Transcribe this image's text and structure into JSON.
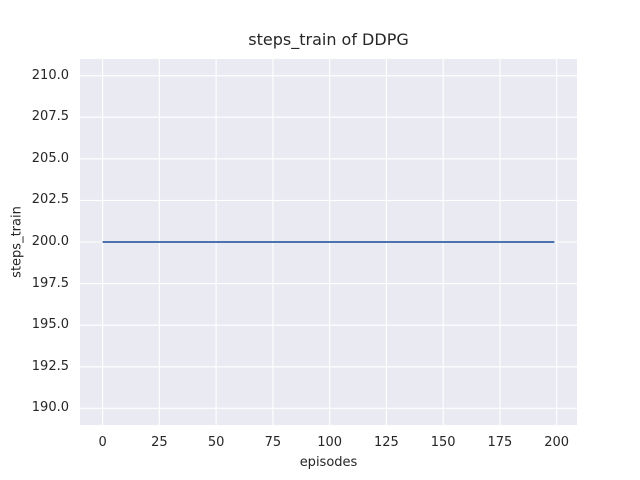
{
  "chart_data": {
    "type": "line",
    "title": "steps_train of DDPG",
    "xlabel": "episodes",
    "ylabel": "steps_train",
    "series": [
      {
        "color": "#4c72b0",
        "x": [
          0,
          199
        ],
        "y": [
          200,
          200
        ],
        "description": "constant line at steps_train = 200 for episodes 0 through 199"
      }
    ],
    "xlim": [
      -9.95,
      208.95
    ],
    "ylim": [
      189,
      211
    ],
    "xtick_values": [
      0,
      25,
      50,
      75,
      100,
      125,
      150,
      175,
      200
    ],
    "xtick_labels": [
      "0",
      "25",
      "50",
      "75",
      "100",
      "125",
      "150",
      "175",
      "200"
    ],
    "ytick_values": [
      190,
      192.5,
      195,
      197.5,
      200,
      202.5,
      205,
      207.5,
      210
    ],
    "ytick_labels": [
      "190.0",
      "192.5",
      "195.0",
      "197.5",
      "200.0",
      "202.5",
      "205.0",
      "207.5",
      "210.0"
    ],
    "grid": true,
    "legend_shown": false,
    "colors": {
      "plot_background": "#eaeaf2",
      "figure_background": "#ffffff",
      "gridline": "#ffffff",
      "line": "#4c72b0",
      "text": "#262626"
    }
  }
}
